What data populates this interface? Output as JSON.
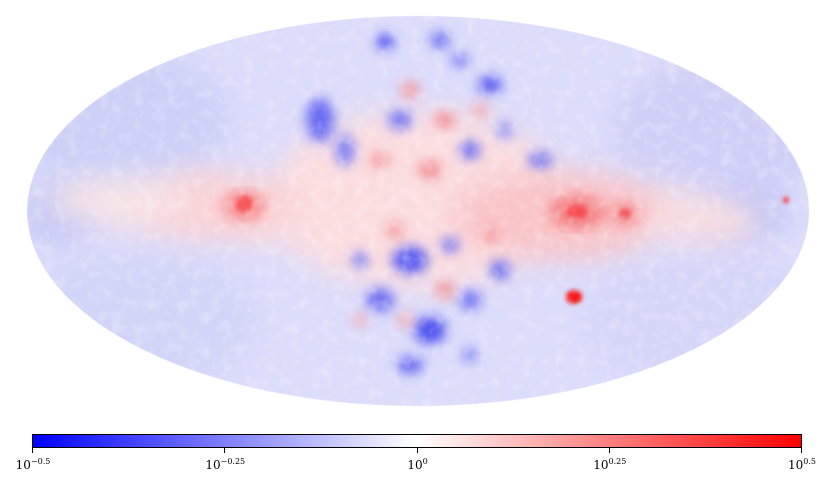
{
  "colorbar": {
    "colors": {
      "low": "#0000ff",
      "mid": "#ffffff",
      "high": "#ff0000"
    },
    "ticks": [
      {
        "base": "10",
        "exponent": "−0.5"
      },
      {
        "base": "10",
        "exponent": "−0.25"
      },
      {
        "base": "10",
        "exponent": "0"
      },
      {
        "base": "10",
        "exponent": "0.25"
      },
      {
        "base": "10",
        "exponent": "0.5"
      }
    ]
  }
}
